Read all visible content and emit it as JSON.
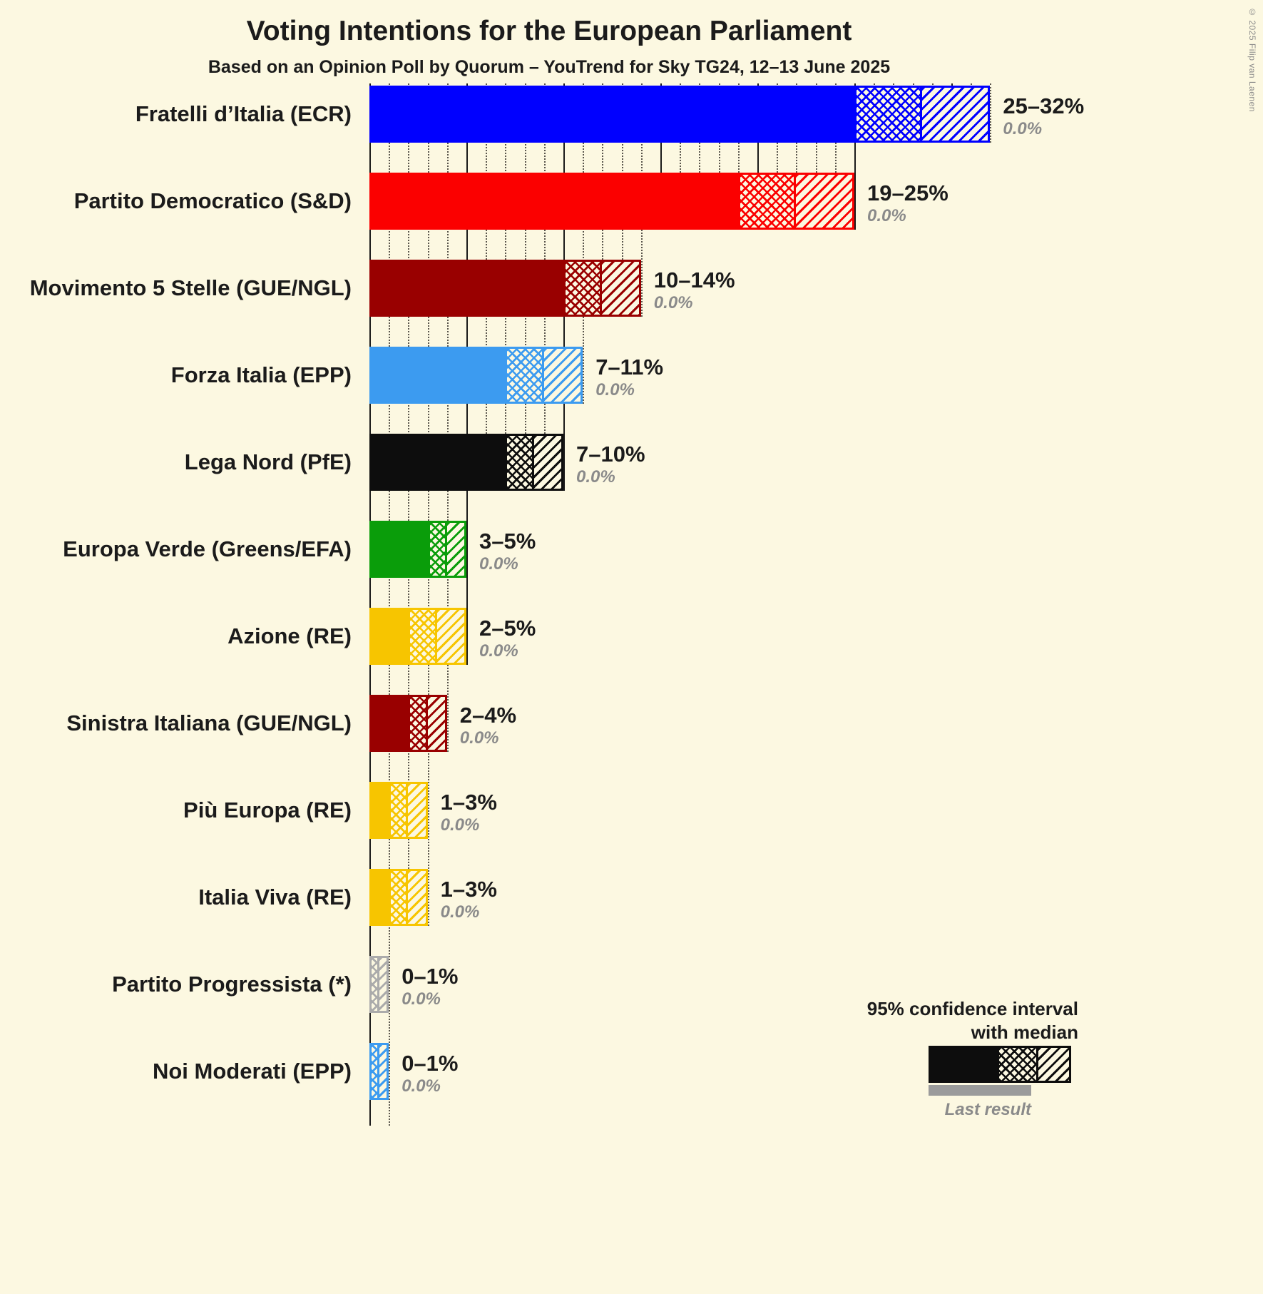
{
  "header": {
    "title": "Voting Intentions for the European Parliament",
    "subtitle": "Based on an Opinion Poll by Quorum – YouTrend for Sky TG24, 12–13 June 2025",
    "copyright": "© 2025 Filip van Laenen"
  },
  "legend": {
    "ci_line1": "95% confidence interval",
    "ci_line2": "with median",
    "last_result": "Last result"
  },
  "colors": {
    "background": "#FCF8E1",
    "grid_major": "#1B1B1B",
    "grid_minor": "#5A564D",
    "text": "#1B1B1B",
    "muted_text": "#8A8A8A",
    "last_result_bar": "#9B9B9B"
  },
  "chart_data": {
    "type": "bar",
    "orientation": "horizontal",
    "unit": "percent",
    "title": "Voting Intentions for the European Parliament",
    "subtitle": "Based on an Opinion Poll by Quorum – YouTrend for Sky TG24, 12–13 June 2025",
    "x_axis": {
      "min": 0,
      "max": 32,
      "minor_step": 1,
      "major_step": 5,
      "gridlines": true
    },
    "note": "Each bar: solid fill to lower bound of 95% CI, crosshatch to median, diagonal hatch to upper bound; last result shown as 0.0% for all parties",
    "parties": [
      {
        "label": "Fratelli d’Italia (ECR)",
        "range_label": "25–32%",
        "low": 25,
        "median": 28.5,
        "high": 32,
        "last_result": 0.0,
        "last_result_label": "0.0%",
        "color": "#0000FF"
      },
      {
        "label": "Partito Democratico (S&D)",
        "range_label": "19–25%",
        "low": 19,
        "median": 22,
        "high": 25,
        "last_result": 0.0,
        "last_result_label": "0.0%",
        "color": "#FB0000"
      },
      {
        "label": "Movimento 5 Stelle (GUE/NGL)",
        "range_label": "10–14%",
        "low": 10,
        "median": 12,
        "high": 14,
        "last_result": 0.0,
        "last_result_label": "0.0%",
        "color": "#990000"
      },
      {
        "label": "Forza Italia (EPP)",
        "range_label": "7–11%",
        "low": 7,
        "median": 9,
        "high": 11,
        "last_result": 0.0,
        "last_result_label": "0.0%",
        "color": "#3C9BF0"
      },
      {
        "label": "Lega Nord (PfE)",
        "range_label": "7–10%",
        "low": 7,
        "median": 8.5,
        "high": 10,
        "last_result": 0.0,
        "last_result_label": "0.0%",
        "color": "#0D0D0D"
      },
      {
        "label": "Europa Verde (Greens/EFA)",
        "range_label": "3–5%",
        "low": 3,
        "median": 4,
        "high": 5,
        "last_result": 0.0,
        "last_result_label": "0.0%",
        "color": "#0A9D0A"
      },
      {
        "label": "Azione (RE)",
        "range_label": "2–5%",
        "low": 2,
        "median": 3.5,
        "high": 5,
        "last_result": 0.0,
        "last_result_label": "0.0%",
        "color": "#F7C500"
      },
      {
        "label": "Sinistra Italiana (GUE/NGL)",
        "range_label": "2–4%",
        "low": 2,
        "median": 3,
        "high": 4,
        "last_result": 0.0,
        "last_result_label": "0.0%",
        "color": "#990000"
      },
      {
        "label": "Più Europa (RE)",
        "range_label": "1–3%",
        "low": 1,
        "median": 2,
        "high": 3,
        "last_result": 0.0,
        "last_result_label": "0.0%",
        "color": "#F7C500"
      },
      {
        "label": "Italia Viva (RE)",
        "range_label": "1–3%",
        "low": 1,
        "median": 2,
        "high": 3,
        "last_result": 0.0,
        "last_result_label": "0.0%",
        "color": "#F7C500"
      },
      {
        "label": "Partito Progressista (*)",
        "range_label": "0–1%",
        "low": 0,
        "median": 0.5,
        "high": 1,
        "last_result": 0.0,
        "last_result_label": "0.0%",
        "color": "#ABABAB"
      },
      {
        "label": "Noi Moderati (EPP)",
        "range_label": "0–1%",
        "low": 0,
        "median": 0.5,
        "high": 1,
        "last_result": 0.0,
        "last_result_label": "0.0%",
        "color": "#3C9BF0"
      }
    ]
  }
}
